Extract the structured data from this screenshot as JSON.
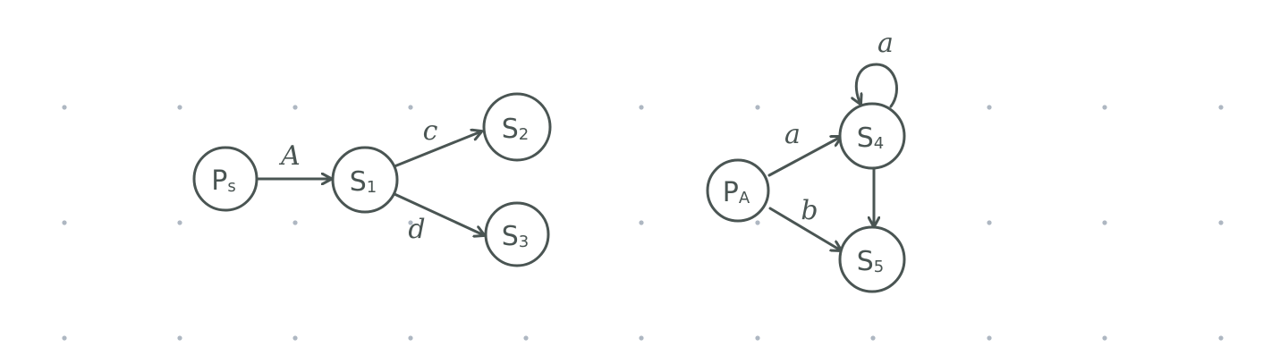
{
  "colors": {
    "ink": "#4a5553",
    "grid_dot": "#aeb7c2",
    "background": "#ffffff"
  },
  "diagram": {
    "left_graph": {
      "nodes": [
        {
          "id": "ps",
          "main": "P",
          "sub": "s"
        },
        {
          "id": "s1",
          "main": "S",
          "sub": "1"
        },
        {
          "id": "s2",
          "main": "S",
          "sub": "2"
        },
        {
          "id": "s3",
          "main": "S",
          "sub": "3"
        }
      ],
      "edges": [
        {
          "from": "ps",
          "to": "s1",
          "label": "A"
        },
        {
          "from": "s1",
          "to": "s2",
          "label": "c"
        },
        {
          "from": "s1",
          "to": "s3",
          "label": "d"
        }
      ]
    },
    "right_graph": {
      "nodes": [
        {
          "id": "pa",
          "main": "P",
          "sub": "A"
        },
        {
          "id": "s4",
          "main": "S",
          "sub": "4"
        },
        {
          "id": "s5",
          "main": "S",
          "sub": "5"
        }
      ],
      "edges": [
        {
          "from": "pa",
          "to": "s4",
          "label": "a"
        },
        {
          "from": "pa",
          "to": "s5",
          "label": "b"
        },
        {
          "from": "s4",
          "to": "s5",
          "label": ""
        },
        {
          "from": "s4",
          "to": "s4",
          "label": "a"
        }
      ]
    }
  }
}
